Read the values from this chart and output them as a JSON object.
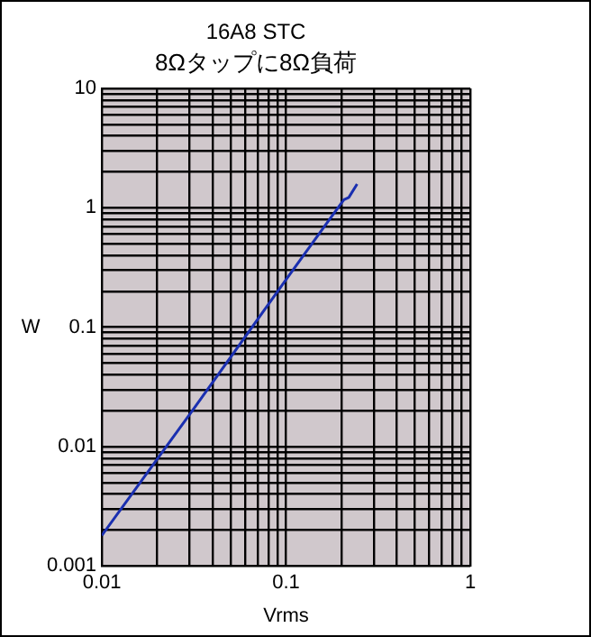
{
  "chart_data": {
    "type": "line",
    "title": "16A8 STC",
    "subtitle": "8Ωタップに8Ω負荷",
    "xlabel": "Vrms",
    "ylabel": "W",
    "log": "xy",
    "x": [
      0.01,
      0.031,
      0.1,
      0.179,
      0.206,
      0.219,
      0.243
    ],
    "series": [
      {
        "color": "#1a2fb0",
        "values": [
          0.0018,
          0.02,
          0.25,
          0.87,
          1.17,
          1.22,
          1.58
        ]
      }
    ],
    "xlim": [
      0.01,
      1
    ],
    "xticks": [
      0.01,
      {
        "value": 0.02,
        "label": null
      },
      {
        "value": 0.03,
        "label": null
      },
      {
        "value": 0.04,
        "label": null
      },
      {
        "value": 0.05,
        "label": null
      },
      {
        "value": 0.06,
        "label": null
      },
      {
        "value": 0.07,
        "label": null
      },
      {
        "value": 0.08,
        "label": null
      },
      {
        "value": 0.09,
        "label": null
      },
      0.1,
      {
        "value": 0.2,
        "label": null
      },
      {
        "value": 0.3,
        "label": null
      },
      {
        "value": 0.4,
        "label": null
      },
      {
        "value": 0.5,
        "label": null
      },
      {
        "value": 0.6,
        "label": null
      },
      {
        "value": 0.7,
        "label": null
      },
      {
        "value": 0.8,
        "label": null
      },
      {
        "value": 0.9,
        "label": null
      },
      1
    ],
    "ylim": [
      0.001,
      10
    ],
    "yticks": [
      0.001,
      {
        "value": 0.002,
        "label": null
      },
      {
        "value": 0.003,
        "label": null
      },
      {
        "value": 0.004,
        "label": null
      },
      {
        "value": 0.005,
        "label": null
      },
      {
        "value": 0.006,
        "label": null
      },
      {
        "value": 0.007,
        "label": null
      },
      {
        "value": 0.008,
        "label": null
      },
      {
        "value": 0.009,
        "label": null
      },
      0.01,
      {
        "value": 0.02,
        "label": null
      },
      {
        "value": 0.03,
        "label": null
      },
      {
        "value": 0.04,
        "label": null
      },
      {
        "value": 0.05,
        "label": null
      },
      {
        "value": 0.06,
        "label": null
      },
      {
        "value": 0.07,
        "label": null
      },
      {
        "value": 0.08,
        "label": null
      },
      {
        "value": 0.09,
        "label": null
      },
      0.1,
      {
        "value": 0.2,
        "label": null
      },
      {
        "value": 0.3,
        "label": null
      },
      {
        "value": 0.4,
        "label": null
      },
      {
        "value": 0.5,
        "label": null
      },
      {
        "value": 0.6,
        "label": null
      },
      {
        "value": 0.7,
        "label": null
      },
      {
        "value": 0.8,
        "label": null
      },
      {
        "value": 0.9,
        "label": null
      },
      1,
      {
        "value": 2,
        "label": null
      },
      {
        "value": 3,
        "label": null
      },
      {
        "value": 4,
        "label": null
      },
      {
        "value": 5,
        "label": null
      },
      {
        "value": 6,
        "label": null
      },
      {
        "value": 7,
        "label": null
      },
      {
        "value": 8,
        "label": null
      },
      {
        "value": 9,
        "label": null
      },
      10
    ],
    "grid": true,
    "legend": false,
    "marker": "none",
    "line_style": "solid"
  }
}
